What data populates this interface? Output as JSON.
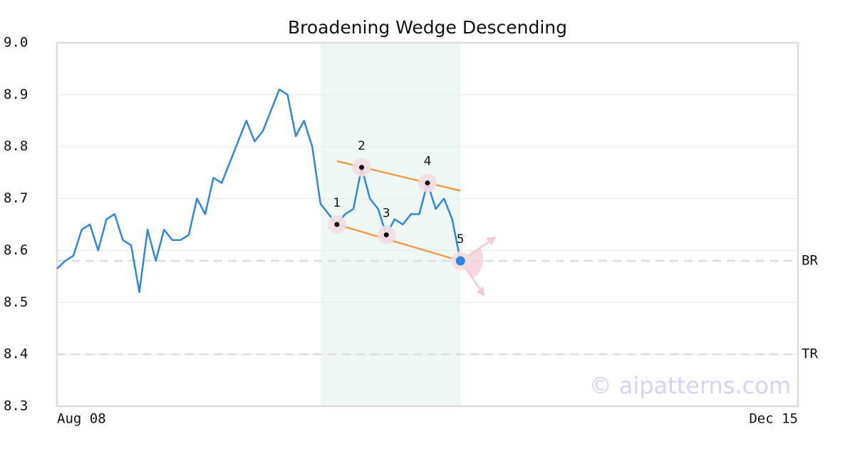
{
  "chart_data": {
    "type": "line",
    "title": "Broadening Wedge Descending",
    "x": [
      0,
      1,
      2,
      3,
      4,
      5,
      6,
      7,
      8,
      9,
      10,
      11,
      12,
      13,
      14,
      15,
      16,
      17,
      18,
      19,
      20,
      21,
      22,
      23,
      24,
      25,
      26,
      27,
      28,
      29,
      30,
      31,
      32,
      33,
      34,
      35,
      36,
      37,
      38,
      39,
      40,
      41,
      42,
      43,
      44,
      45,
      46,
      47,
      48,
      49
    ],
    "series": [
      {
        "color": "#2e86de",
        "values": [
          8.565,
          8.58,
          8.59,
          8.64,
          8.65,
          8.6,
          8.66,
          8.67,
          8.62,
          8.61,
          8.52,
          8.64,
          8.58,
          8.64,
          8.62,
          8.62,
          8.63,
          8.7,
          8.67,
          8.74,
          8.73,
          8.77,
          8.81,
          8.85,
          8.81,
          8.83,
          8.87,
          8.91,
          8.9,
          8.82,
          8.85,
          8.8,
          8.69,
          8.67,
          8.65,
          8.67,
          8.68,
          8.76,
          8.7,
          8.68,
          8.63,
          8.66,
          8.65,
          8.67,
          8.67,
          8.73,
          8.68,
          8.7,
          8.66,
          8.58
        ]
      }
    ],
    "xlim": [
      0,
      90
    ],
    "xticks": [
      {
        "value": 0,
        "label": "Aug 08"
      },
      {
        "value": 90,
        "label": "Dec 15"
      }
    ],
    "ylim": [
      8.3,
      9.0
    ],
    "yticks": [
      8.3,
      8.4,
      8.5,
      8.6,
      8.7,
      8.8,
      8.9,
      {
        "value": 9.0,
        "label": "9.0"
      }
    ],
    "grid": true,
    "highlight": [
      32,
      49
    ],
    "pattern": {
      "points": [
        {
          "label": "1",
          "x": 34,
          "y": 8.65
        },
        {
          "label": "2",
          "x": 37,
          "y": 8.76
        },
        {
          "label": "3",
          "x": 40,
          "y": 8.63
        },
        {
          "label": "4",
          "x": 45,
          "y": 8.73
        },
        {
          "label": "5",
          "x": 49,
          "y": 8.58
        }
      ],
      "trendlines": [
        {
          "x": [
            34,
            49
          ],
          "y": [
            8.772,
            8.715
          ],
          "color": "#f39c4a"
        },
        {
          "x": [
            34,
            49
          ],
          "y": [
            8.65,
            8.58
          ],
          "color": "#f39c4a"
        }
      ]
    },
    "levels": [
      {
        "name": "BR",
        "value": 8.58
      },
      {
        "name": "TR",
        "value": 8.4
      }
    ],
    "watermark": "© aipatterns.com"
  }
}
